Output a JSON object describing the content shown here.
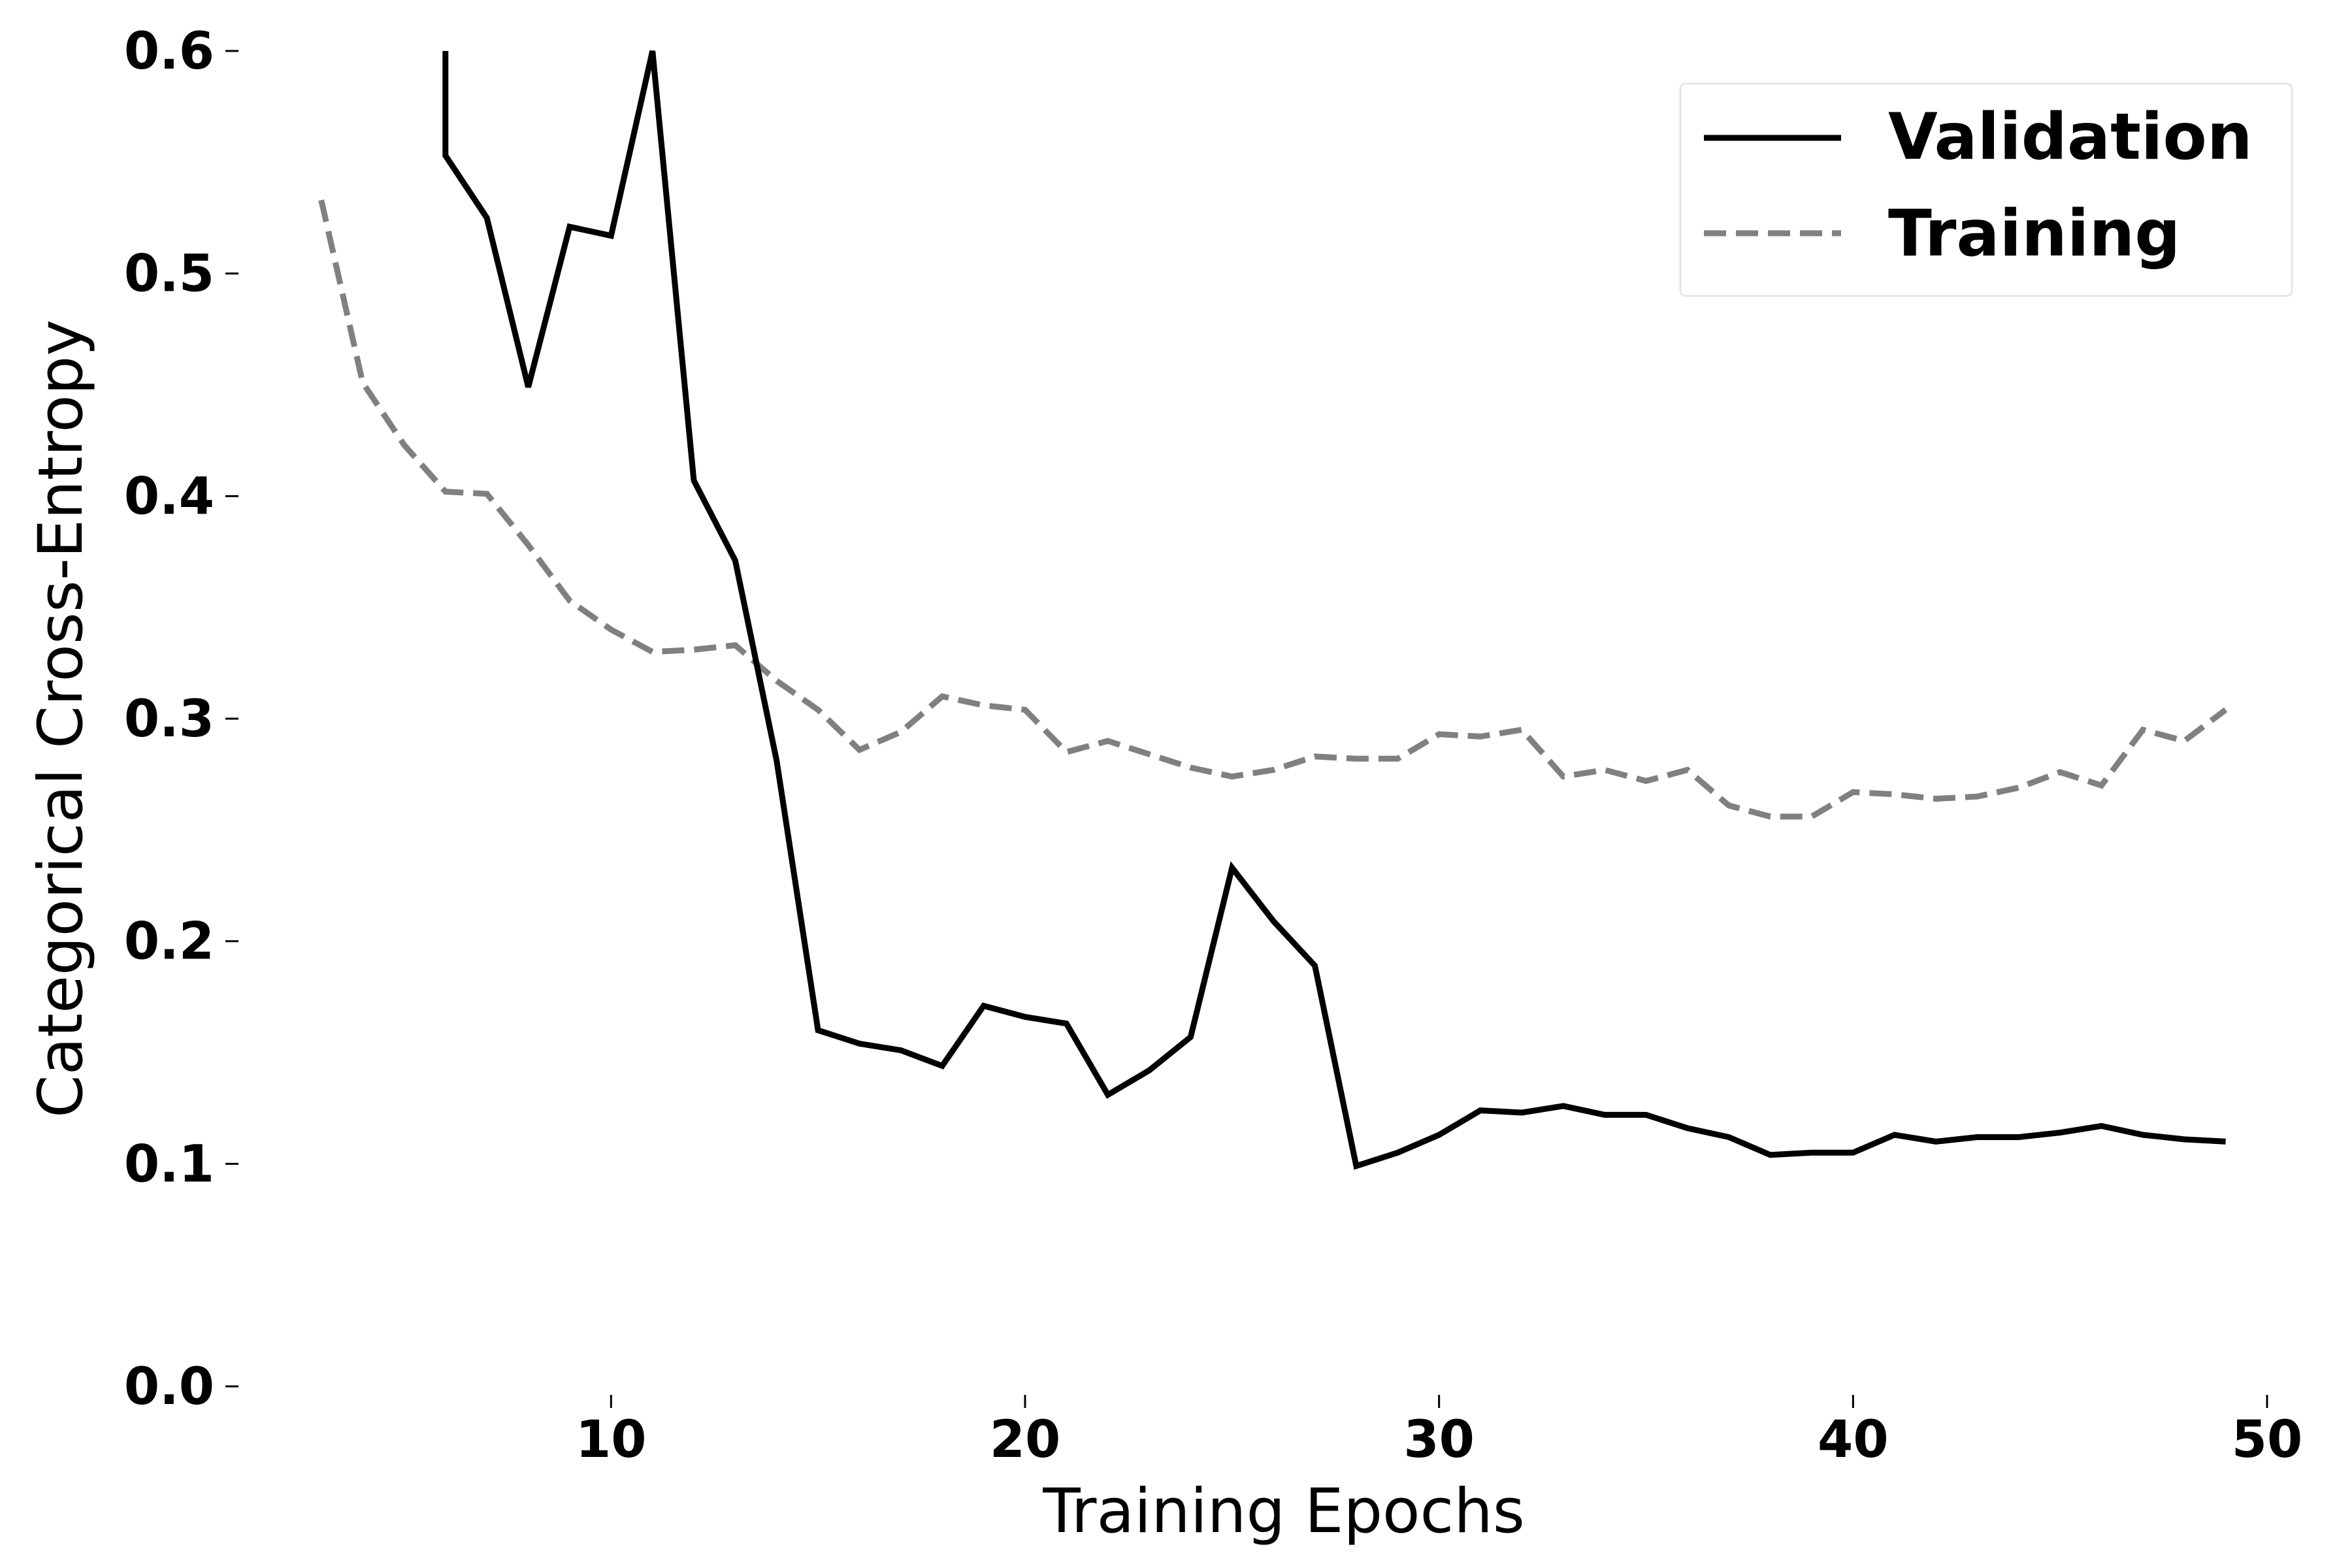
{
  "chart_data": {
    "type": "line",
    "xlabel": "Training Epochs",
    "ylabel": "Categorical Cross-Entropy",
    "xlim": [
      1,
      50
    ],
    "ylim": [
      0,
      0.6
    ],
    "xticks": [
      10,
      20,
      30,
      40,
      50
    ],
    "yticks": [
      0.0,
      0.1,
      0.2,
      0.3,
      0.4,
      0.5,
      0.6
    ],
    "xtick_labels": [
      "10",
      "20",
      "30",
      "40",
      "50"
    ],
    "ytick_labels": [
      "0.0",
      "0.1",
      "0.2",
      "0.3",
      "0.4",
      "0.5",
      "0.6"
    ],
    "grid": false,
    "legend_position": "top-right",
    "series": [
      {
        "name": "Validation",
        "color": "#000000",
        "style": "solid",
        "x": [
          6,
          6,
          7,
          8,
          9,
          10,
          11,
          12,
          13,
          14,
          15,
          16,
          17,
          18,
          19,
          20,
          21,
          22,
          23,
          24,
          25,
          26,
          27,
          28,
          29,
          30,
          31,
          32,
          33,
          34,
          35,
          36,
          37,
          38,
          39,
          40,
          41,
          42,
          43,
          44,
          45,
          46,
          47,
          48,
          49
        ],
        "values": [
          0.6,
          0.553,
          0.525,
          0.449,
          0.521,
          0.517,
          0.6,
          0.407,
          0.371,
          0.281,
          0.16,
          0.154,
          0.151,
          0.144,
          0.171,
          0.166,
          0.163,
          0.131,
          0.142,
          0.157,
          0.233,
          0.209,
          0.189,
          0.099,
          0.105,
          0.113,
          0.124,
          0.123,
          0.126,
          0.122,
          0.122,
          0.116,
          0.112,
          0.104,
          0.105,
          0.105,
          0.113,
          0.11,
          0.112,
          0.112,
          0.114,
          0.117,
          0.113,
          0.111,
          0.11
        ]
      },
      {
        "name": "Training",
        "color": "#808080",
        "style": "dashed",
        "x": [
          3,
          4,
          5,
          6,
          7,
          8,
          9,
          10,
          11,
          12,
          13,
          14,
          15,
          16,
          17,
          18,
          19,
          20,
          21,
          22,
          23,
          24,
          25,
          26,
          27,
          28,
          29,
          30,
          31,
          32,
          33,
          34,
          35,
          36,
          37,
          38,
          39,
          40,
          41,
          42,
          43,
          44,
          45,
          46,
          47,
          48,
          49
        ],
        "values": [
          0.533,
          0.451,
          0.423,
          0.402,
          0.401,
          0.378,
          0.353,
          0.34,
          0.33,
          0.331,
          0.333,
          0.317,
          0.304,
          0.286,
          0.294,
          0.31,
          0.306,
          0.304,
          0.285,
          0.29,
          0.284,
          0.278,
          0.274,
          0.277,
          0.283,
          0.282,
          0.282,
          0.293,
          0.292,
          0.295,
          0.274,
          0.277,
          0.272,
          0.277,
          0.261,
          0.256,
          0.256,
          0.267,
          0.266,
          0.264,
          0.265,
          0.269,
          0.276,
          0.27,
          0.295,
          0.29,
          0.304
        ]
      }
    ]
  }
}
